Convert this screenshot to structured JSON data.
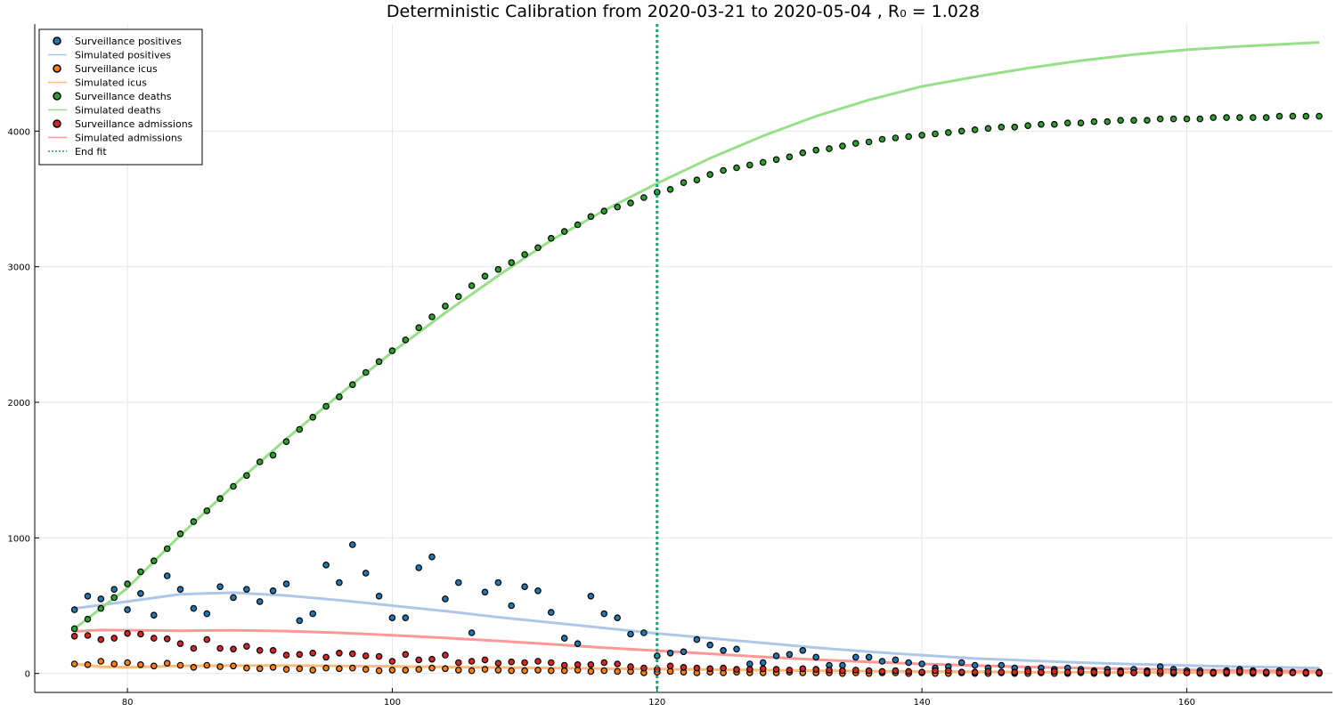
{
  "chart_data": {
    "type": "scatter",
    "title": "Deterministic Calibration from 2020-03-21 to 2020-05-04 , R₀ = 1.028",
    "xlabel": "",
    "ylabel": "",
    "xlim": [
      73,
      171
    ],
    "ylim": [
      -140,
      4790
    ],
    "x_ticks": [
      80,
      100,
      120,
      140,
      160
    ],
    "y_ticks": [
      0,
      1000,
      2000,
      3000,
      4000
    ],
    "grid": true,
    "legend_position": "top-left",
    "end_fit_x": 120,
    "x": [
      76,
      77,
      78,
      79,
      80,
      81,
      82,
      83,
      84,
      85,
      86,
      87,
      88,
      89,
      90,
      91,
      92,
      93,
      94,
      95,
      96,
      97,
      98,
      99,
      100,
      101,
      102,
      103,
      104,
      105,
      106,
      107,
      108,
      109,
      110,
      111,
      112,
      113,
      114,
      115,
      116,
      117,
      118,
      119,
      120,
      121,
      122,
      123,
      124,
      125,
      126,
      127,
      128,
      129,
      130,
      131,
      132,
      133,
      134,
      135,
      136,
      137,
      138,
      139,
      140,
      141,
      142,
      143,
      144,
      145,
      146,
      147,
      148,
      149,
      150,
      151,
      152,
      153,
      154,
      155,
      156,
      157,
      158,
      159,
      160,
      161,
      162,
      163,
      164,
      165,
      166,
      167,
      168,
      169,
      170
    ],
    "series": [
      {
        "name": "Surveillance positives",
        "kind": "scatter",
        "color": "#1f77b4",
        "values": [
          470,
          570,
          550,
          620,
          470,
          590,
          430,
          720,
          620,
          480,
          440,
          640,
          560,
          620,
          530,
          610,
          660,
          390,
          440,
          800,
          670,
          950,
          740,
          570,
          410,
          410,
          780,
          860,
          550,
          670,
          300,
          600,
          670,
          500,
          640,
          610,
          450,
          260,
          220,
          570,
          440,
          410,
          290,
          300,
          130,
          150,
          160,
          250,
          210,
          170,
          180,
          70,
          80,
          130,
          140,
          170,
          120,
          60,
          60,
          120,
          120,
          90,
          100,
          80,
          70,
          40,
          50,
          80,
          60,
          40,
          60,
          40,
          30,
          40,
          30,
          40,
          30,
          20,
          30,
          20,
          30,
          20,
          50,
          30,
          20,
          20,
          10,
          20,
          30,
          20,
          10,
          20,
          10,
          10,
          10
        ]
      },
      {
        "name": "Simulated positives",
        "kind": "line",
        "color": "#aec7e8",
        "points": [
          [
            76,
            480
          ],
          [
            80,
            530
          ],
          [
            84,
            585
          ],
          [
            88,
            596
          ],
          [
            92,
            575
          ],
          [
            96,
            540
          ],
          [
            100,
            500
          ],
          [
            104,
            460
          ],
          [
            108,
            415
          ],
          [
            112,
            375
          ],
          [
            116,
            335
          ],
          [
            120,
            295
          ],
          [
            124,
            260
          ],
          [
            128,
            225
          ],
          [
            132,
            190
          ],
          [
            136,
            160
          ],
          [
            140,
            135
          ],
          [
            144,
            110
          ],
          [
            148,
            95
          ],
          [
            152,
            80
          ],
          [
            156,
            68
          ],
          [
            160,
            58
          ],
          [
            164,
            50
          ],
          [
            170,
            40
          ]
        ]
      },
      {
        "name": "Surveillance icus",
        "kind": "scatter",
        "color": "#ff7f0e",
        "values": [
          70,
          65,
          90,
          70,
          80,
          65,
          55,
          75,
          60,
          45,
          60,
          50,
          55,
          40,
          35,
          45,
          30,
          35,
          25,
          40,
          35,
          40,
          30,
          20,
          25,
          25,
          30,
          40,
          35,
          25,
          20,
          30,
          25,
          20,
          20,
          25,
          20,
          20,
          25,
          15,
          20,
          15,
          15,
          5,
          10,
          15,
          10,
          5,
          10,
          5,
          10,
          5,
          5,
          5,
          10,
          5,
          5,
          5,
          0,
          5,
          0,
          5,
          5,
          0,
          5,
          0,
          0,
          5,
          0,
          0,
          5,
          0,
          0,
          5,
          0,
          0,
          5,
          0,
          0,
          0,
          5,
          0,
          0,
          0,
          5,
          0,
          0,
          0,
          5,
          0,
          0,
          0,
          5,
          0,
          0
        ]
      },
      {
        "name": "Simulated icus",
        "kind": "line",
        "color": "#ffbb78",
        "points": [
          [
            76,
            70
          ],
          [
            78,
            50
          ],
          [
            80,
            45
          ],
          [
            84,
            55
          ],
          [
            88,
            58
          ],
          [
            92,
            58
          ],
          [
            96,
            55
          ],
          [
            100,
            52
          ],
          [
            104,
            48
          ],
          [
            108,
            44
          ],
          [
            112,
            40
          ],
          [
            116,
            36
          ],
          [
            120,
            32
          ],
          [
            124,
            28
          ],
          [
            128,
            24
          ],
          [
            132,
            20
          ],
          [
            136,
            17
          ],
          [
            140,
            14
          ],
          [
            144,
            12
          ],
          [
            148,
            10
          ],
          [
            152,
            9
          ],
          [
            156,
            8
          ],
          [
            160,
            7
          ],
          [
            164,
            6
          ],
          [
            170,
            5
          ]
        ]
      },
      {
        "name": "Surveillance deaths",
        "kind": "scatter",
        "color": "#2ca02c",
        "values": [
          330,
          400,
          480,
          560,
          660,
          750,
          830,
          920,
          1030,
          1120,
          1200,
          1290,
          1380,
          1460,
          1560,
          1610,
          1710,
          1800,
          1890,
          1970,
          2040,
          2130,
          2220,
          2300,
          2380,
          2460,
          2550,
          2630,
          2710,
          2780,
          2860,
          2930,
          2980,
          3030,
          3090,
          3140,
          3210,
          3260,
          3310,
          3370,
          3410,
          3440,
          3470,
          3510,
          3550,
          3570,
          3620,
          3640,
          3680,
          3710,
          3730,
          3750,
          3770,
          3790,
          3810,
          3840,
          3860,
          3870,
          3890,
          3910,
          3920,
          3940,
          3950,
          3960,
          3970,
          3980,
          3990,
          4000,
          4010,
          4020,
          4030,
          4030,
          4040,
          4050,
          4050,
          4060,
          4060,
          4070,
          4070,
          4080,
          4080,
          4080,
          4090,
          4090,
          4090,
          4090,
          4100,
          4100,
          4100,
          4100,
          4100,
          4110,
          4110,
          4110,
          4110
        ]
      },
      {
        "name": "Simulated deaths",
        "kind": "line",
        "color": "#98df8a",
        "points": [
          [
            76,
            330
          ],
          [
            80,
            630
          ],
          [
            84,
            1020
          ],
          [
            88,
            1385
          ],
          [
            92,
            1730
          ],
          [
            96,
            2055
          ],
          [
            100,
            2370
          ],
          [
            104,
            2660
          ],
          [
            108,
            2935
          ],
          [
            112,
            3195
          ],
          [
            116,
            3415
          ],
          [
            120,
            3615
          ],
          [
            124,
            3800
          ],
          [
            128,
            3965
          ],
          [
            132,
            4110
          ],
          [
            136,
            4230
          ],
          [
            140,
            4330
          ],
          [
            144,
            4400
          ],
          [
            148,
            4465
          ],
          [
            152,
            4520
          ],
          [
            156,
            4565
          ],
          [
            160,
            4600
          ],
          [
            164,
            4625
          ],
          [
            170,
            4655
          ]
        ]
      },
      {
        "name": "Surveillance admissions",
        "kind": "scatter",
        "color": "#d62728",
        "values": [
          275,
          280,
          250,
          260,
          295,
          290,
          260,
          255,
          220,
          185,
          250,
          185,
          180,
          200,
          170,
          170,
          135,
          140,
          150,
          120,
          150,
          145,
          130,
          125,
          90,
          140,
          100,
          105,
          135,
          80,
          90,
          100,
          75,
          85,
          80,
          90,
          80,
          60,
          65,
          65,
          80,
          70,
          50,
          40,
          30,
          55,
          45,
          40,
          35,
          40,
          30,
          30,
          35,
          30,
          25,
          35,
          30,
          25,
          20,
          25,
          20,
          15,
          20,
          15,
          10,
          20,
          20,
          10,
          10,
          15,
          10,
          10,
          15,
          10,
          15,
          10,
          15,
          10,
          10,
          10,
          5,
          10,
          15,
          10,
          5,
          5,
          5,
          10,
          15,
          10,
          10,
          5,
          5,
          5,
          5
        ]
      },
      {
        "name": "Simulated admissions",
        "kind": "line",
        "color": "#ff9896",
        "points": [
          [
            76,
            310
          ],
          [
            78,
            320
          ],
          [
            84,
            315
          ],
          [
            88,
            318
          ],
          [
            92,
            312
          ],
          [
            96,
            300
          ],
          [
            100,
            282
          ],
          [
            104,
            262
          ],
          [
            108,
            240
          ],
          [
            112,
            215
          ],
          [
            116,
            190
          ],
          [
            120,
            168
          ],
          [
            124,
            145
          ],
          [
            128,
            122
          ],
          [
            132,
            102
          ],
          [
            136,
            85
          ],
          [
            140,
            70
          ],
          [
            144,
            58
          ],
          [
            148,
            48
          ],
          [
            152,
            40
          ],
          [
            156,
            33
          ],
          [
            160,
            27
          ],
          [
            164,
            22
          ],
          [
            170,
            17
          ]
        ]
      },
      {
        "name": "End fit",
        "kind": "vline",
        "color": "#17a57a"
      }
    ]
  }
}
